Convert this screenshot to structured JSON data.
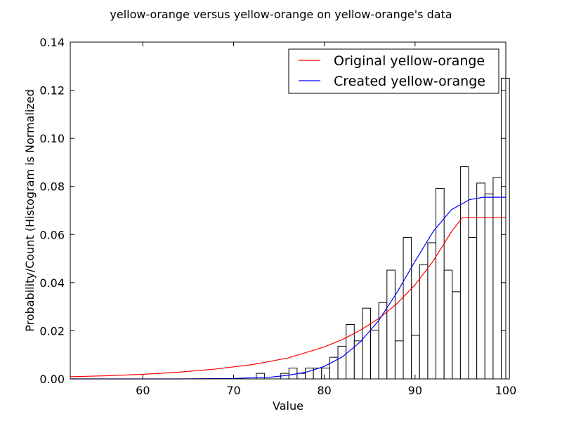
{
  "chart_data": {
    "type": "bar",
    "title": "yellow-orange versus yellow-orange on yellow-orange's data",
    "xlabel": "Value",
    "ylabel": "Probability/Count (Histogram is Normalized",
    "xlim": [
      52,
      100
    ],
    "ylim": [
      0,
      0.14
    ],
    "xticks": [
      "60",
      "70",
      "80",
      "90",
      "100"
    ],
    "yticks": [
      "0.00",
      "0.02",
      "0.04",
      "0.06",
      "0.08",
      "0.10",
      "0.12",
      "0.14"
    ],
    "grid": false,
    "legend_position": "top-right",
    "histogram": {
      "bin_width": 0.9,
      "bins": [
        {
          "x": 72.5,
          "value": 0.0023
        },
        {
          "x": 73.4,
          "value": 0.0
        },
        {
          "x": 74.3,
          "value": 0.0
        },
        {
          "x": 75.2,
          "value": 0.0023
        },
        {
          "x": 76.1,
          "value": 0.0045
        },
        {
          "x": 77.0,
          "value": 0.0023
        },
        {
          "x": 77.9,
          "value": 0.0045
        },
        {
          "x": 78.8,
          "value": 0.0045
        },
        {
          "x": 79.7,
          "value": 0.0045
        },
        {
          "x": 80.6,
          "value": 0.009
        },
        {
          "x": 81.5,
          "value": 0.0136
        },
        {
          "x": 82.4,
          "value": 0.0226
        },
        {
          "x": 83.3,
          "value": 0.0158
        },
        {
          "x": 84.2,
          "value": 0.0294
        },
        {
          "x": 85.1,
          "value": 0.0203
        },
        {
          "x": 86.0,
          "value": 0.0317
        },
        {
          "x": 86.9,
          "value": 0.0452
        },
        {
          "x": 87.8,
          "value": 0.0158
        },
        {
          "x": 88.7,
          "value": 0.0588
        },
        {
          "x": 89.6,
          "value": 0.0181
        },
        {
          "x": 90.5,
          "value": 0.0475
        },
        {
          "x": 91.4,
          "value": 0.0566
        },
        {
          "x": 92.3,
          "value": 0.0792
        },
        {
          "x": 93.2,
          "value": 0.0452
        },
        {
          "x": 94.1,
          "value": 0.0362
        },
        {
          "x": 95.0,
          "value": 0.0882
        },
        {
          "x": 95.9,
          "value": 0.0588
        },
        {
          "x": 96.8,
          "value": 0.0814
        },
        {
          "x": 97.7,
          "value": 0.0769
        },
        {
          "x": 98.6,
          "value": 0.0837
        },
        {
          "x": 99.5,
          "value": 0.125
        }
      ]
    },
    "series": [
      {
        "name": "Original yellow-orange",
        "color": "#ff0000",
        "type": "line",
        "x": [
          52,
          56,
          60,
          64,
          68,
          72,
          76,
          80,
          82,
          84,
          86,
          88,
          90,
          92,
          94,
          95.2,
          100
        ],
        "y": [
          0.0009,
          0.0013,
          0.0019,
          0.0028,
          0.0041,
          0.0059,
          0.0087,
          0.0133,
          0.0164,
          0.0203,
          0.0251,
          0.0313,
          0.0391,
          0.049,
          0.0611,
          0.067,
          0.067
        ]
      },
      {
        "name": "Created yellow-orange",
        "color": "#0000ff",
        "type": "line",
        "x": [
          52,
          64,
          70,
          74,
          76,
          78,
          80,
          82,
          84,
          86,
          88,
          90,
          92,
          94,
          96,
          97.5,
          100
        ],
        "y": [
          0.0,
          0.0,
          0.0002,
          0.0007,
          0.0015,
          0.0028,
          0.0052,
          0.0092,
          0.0155,
          0.0243,
          0.0359,
          0.0489,
          0.0613,
          0.0703,
          0.0745,
          0.0755,
          0.0755
        ]
      }
    ]
  }
}
